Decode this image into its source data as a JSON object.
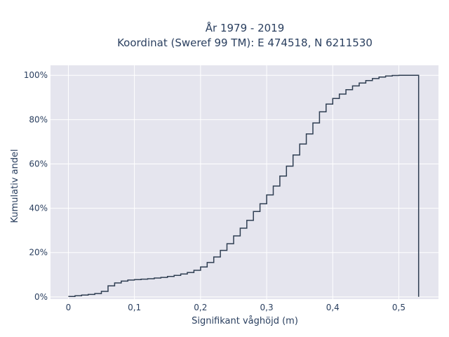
{
  "chart_data": {
    "type": "line",
    "subtype": "empirical-cdf-step",
    "title_line1": "År 1979 - 2019",
    "title_line2": "Koordinat (Sweref 99 TM): E 474518, N 6211530",
    "xlabel": "Signifikant våghöjd (m)",
    "ylabel": "Kumulativ andel",
    "xlim": [
      -0.027,
      0.56
    ],
    "ylim": [
      -0.01,
      1.045
    ],
    "x_ticks": [
      0,
      0.1,
      0.2,
      0.3,
      0.4,
      0.5
    ],
    "x_tick_labels": [
      "0",
      "0,1",
      "0,2",
      "0,3",
      "0,4",
      "0,5"
    ],
    "y_ticks": [
      0,
      0.2,
      0.4,
      0.6,
      0.8,
      1.0
    ],
    "y_tick_labels": [
      "0%",
      "20%",
      "40%",
      "60%",
      "80%",
      "100%"
    ],
    "grid": true,
    "line_color": "#2f3e52",
    "plot_bg": "#e5e5ee",
    "x": [
      0,
      0.01,
      0.02,
      0.03,
      0.04,
      0.05,
      0.06,
      0.07,
      0.08,
      0.09,
      0.1,
      0.11,
      0.12,
      0.13,
      0.14,
      0.15,
      0.16,
      0.17,
      0.18,
      0.19,
      0.2,
      0.21,
      0.22,
      0.23,
      0.24,
      0.25,
      0.26,
      0.27,
      0.28,
      0.29,
      0.3,
      0.31,
      0.32,
      0.33,
      0.34,
      0.35,
      0.36,
      0.37,
      0.38,
      0.39,
      0.4,
      0.41,
      0.42,
      0.43,
      0.44,
      0.45,
      0.46,
      0.47,
      0.48,
      0.49,
      0.5,
      0.51,
      0.52,
      0.53
    ],
    "y": [
      0.002,
      0.005,
      0.008,
      0.011,
      0.015,
      0.025,
      0.05,
      0.063,
      0.071,
      0.076,
      0.078,
      0.08,
      0.082,
      0.085,
      0.088,
      0.092,
      0.097,
      0.103,
      0.11,
      0.12,
      0.135,
      0.155,
      0.18,
      0.21,
      0.24,
      0.275,
      0.31,
      0.345,
      0.385,
      0.42,
      0.46,
      0.5,
      0.545,
      0.59,
      0.64,
      0.69,
      0.735,
      0.785,
      0.835,
      0.87,
      0.895,
      0.915,
      0.935,
      0.952,
      0.965,
      0.976,
      0.985,
      0.992,
      0.997,
      0.999,
      1.0,
      1.0,
      1.0,
      0.0
    ]
  }
}
